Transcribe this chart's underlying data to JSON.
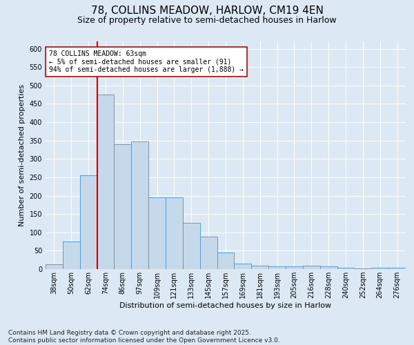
{
  "title_line1": "78, COLLINS MEADOW, HARLOW, CM19 4EN",
  "title_line2": "Size of property relative to semi-detached houses in Harlow",
  "xlabel": "Distribution of semi-detached houses by size in Harlow",
  "ylabel": "Number of semi-detached properties",
  "categories": [
    "38sqm",
    "50sqm",
    "62sqm",
    "74sqm",
    "86sqm",
    "97sqm",
    "109sqm",
    "121sqm",
    "133sqm",
    "145sqm",
    "157sqm",
    "169sqm",
    "181sqm",
    "193sqm",
    "205sqm",
    "216sqm",
    "228sqm",
    "240sqm",
    "252sqm",
    "264sqm",
    "276sqm"
  ],
  "values": [
    14,
    75,
    255,
    475,
    340,
    347,
    196,
    196,
    126,
    88,
    46,
    15,
    10,
    7,
    8,
    10,
    7,
    3,
    2,
    3,
    3
  ],
  "bar_color": "#c5d9ea",
  "bar_edge_color": "#5b9bd5",
  "vline_x_index": 2,
  "vline_color": "#cc0000",
  "annotation_text": "78 COLLINS MEADOW: 63sqm\n← 5% of semi-detached houses are smaller (91)\n94% of semi-detached houses are larger (1,888) →",
  "annotation_box_facecolor": "#ffffff",
  "annotation_box_edgecolor": "#cc0000",
  "ylim": [
    0,
    620
  ],
  "yticks": [
    0,
    50,
    100,
    150,
    200,
    250,
    300,
    350,
    400,
    450,
    500,
    550,
    600
  ],
  "background_color": "#dce9f5",
  "plot_bg_color": "#dce9f5",
  "grid_color": "#ffffff",
  "footnote": "Contains HM Land Registry data © Crown copyright and database right 2025.\nContains public sector information licensed under the Open Government Licence v3.0.",
  "title_fontsize": 11,
  "subtitle_fontsize": 9,
  "axis_label_fontsize": 8,
  "tick_fontsize": 7,
  "annotation_fontsize": 7,
  "footnote_fontsize": 6.5
}
